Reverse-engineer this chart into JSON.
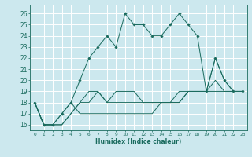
{
  "xlabel": "Humidex (Indice chaleur)",
  "background_color": "#cce8ee",
  "grid_color": "#ffffff",
  "line_color": "#1a6b5e",
  "xlim": [
    -0.5,
    23.5
  ],
  "ylim": [
    15.5,
    26.8
  ],
  "yticks": [
    16,
    17,
    18,
    19,
    20,
    21,
    22,
    23,
    24,
    25,
    26
  ],
  "xticks": [
    0,
    1,
    2,
    3,
    4,
    5,
    6,
    7,
    8,
    9,
    10,
    11,
    12,
    13,
    14,
    15,
    16,
    17,
    18,
    19,
    20,
    21,
    22,
    23
  ],
  "series_with_markers": [
    [
      18,
      16,
      16,
      17,
      18,
      20,
      22,
      23,
      24,
      23,
      26,
      25,
      25,
      24,
      24,
      25,
      26,
      25,
      24,
      19,
      22,
      20,
      19,
      19
    ]
  ],
  "series_no_markers": [
    [
      18,
      16,
      16,
      16,
      17,
      18,
      19,
      19,
      18,
      19,
      19,
      19,
      18,
      18,
      18,
      18,
      18,
      19,
      19,
      19,
      19,
      19,
      19,
      19
    ],
    [
      18,
      16,
      16,
      16,
      17,
      18,
      18,
      19,
      18,
      18,
      18,
      18,
      18,
      18,
      18,
      18,
      19,
      19,
      19,
      19,
      20,
      19,
      19,
      19
    ],
    [
      18,
      16,
      16,
      17,
      18,
      17,
      17,
      17,
      17,
      17,
      17,
      17,
      17,
      17,
      18,
      18,
      18,
      19,
      19,
      19,
      22,
      20,
      19,
      19
    ]
  ]
}
